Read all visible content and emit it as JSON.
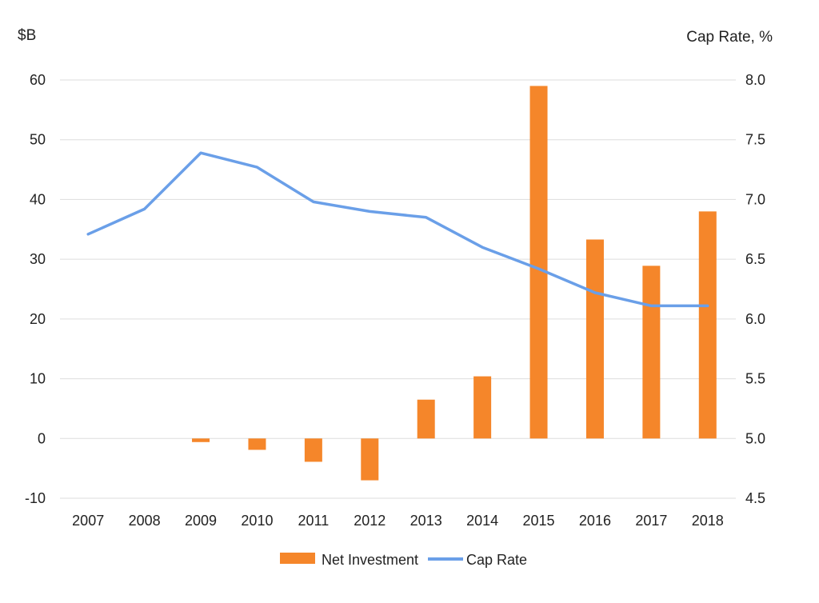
{
  "chart_data": {
    "type": "bar",
    "categories": [
      "2007",
      "2008",
      "2009",
      "2010",
      "2011",
      "2012",
      "2013",
      "2014",
      "2015",
      "2016",
      "2017",
      "2018"
    ],
    "series": [
      {
        "name": "Net Investment",
        "type": "bar",
        "axis": "left",
        "color": "#F5862A",
        "values": [
          0,
          0,
          -0.6,
          -1.9,
          -3.9,
          -7.0,
          6.5,
          10.4,
          59.0,
          33.3,
          28.9,
          38.0
        ]
      },
      {
        "name": "Cap Rate",
        "type": "line",
        "axis": "right",
        "color": "#6A9FE8",
        "values": [
          6.71,
          6.92,
          7.39,
          7.27,
          6.98,
          6.9,
          6.85,
          6.6,
          6.42,
          6.22,
          6.11,
          6.11
        ]
      }
    ],
    "y_left": {
      "label": "$B",
      "ticks": [
        "60",
        "50",
        "40",
        "30",
        "20",
        "10",
        "0",
        "-10"
      ],
      "lim": [
        -10,
        60
      ]
    },
    "y_right": {
      "label": "Cap Rate, %",
      "ticks": [
        "8.0",
        "7.5",
        "7.0",
        "6.5",
        "6.0",
        "5.5",
        "5.0",
        "4.5"
      ],
      "lim": [
        4.5,
        8.0
      ]
    },
    "grid": true,
    "legend_position": "bottom-center",
    "gridline_color": "#DDDDDD"
  }
}
